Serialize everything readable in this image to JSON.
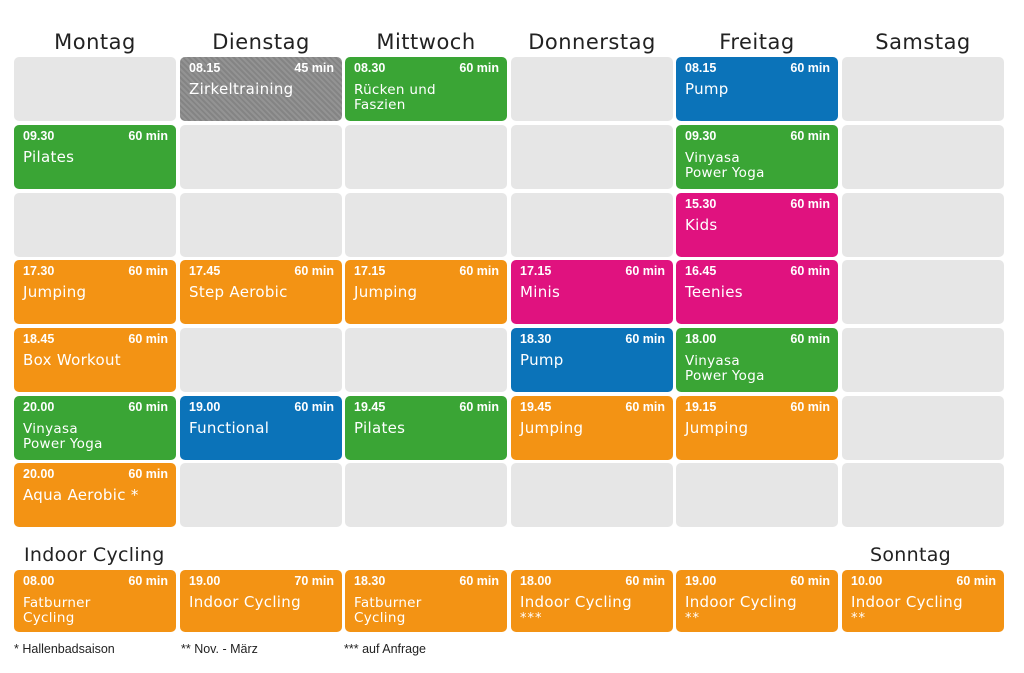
{
  "days": [
    "Montag",
    "Dienstag",
    "Mittwoch",
    "Donnerstag",
    "Freitag",
    "Samstag"
  ],
  "rows": [
    [
      null,
      {
        "time": "08.15",
        "dur": "45 min",
        "title": "Zirkeltraining",
        "color": "gray"
      },
      {
        "time": "08.30",
        "dur": "60 min",
        "title": "Rücken und",
        "title2": "Faszien",
        "color": "green"
      },
      null,
      {
        "time": "08.15",
        "dur": "60 min",
        "title": "Pump",
        "color": "blue"
      },
      null
    ],
    [
      {
        "time": "09.30",
        "dur": "60 min",
        "title": "Pilates",
        "color": "green"
      },
      null,
      null,
      null,
      {
        "time": "09.30",
        "dur": "60 min",
        "title": "Vinyasa",
        "title2": "Power Yoga",
        "color": "green"
      },
      null
    ],
    [
      null,
      null,
      null,
      null,
      {
        "time": "15.30",
        "dur": "60 min",
        "title": "Kids",
        "color": "magenta"
      },
      null
    ],
    [
      {
        "time": "17.30",
        "dur": "60 min",
        "title": "Jumping",
        "color": "orange"
      },
      {
        "time": "17.45",
        "dur": "60 min",
        "title": "Step Aerobic",
        "color": "orange"
      },
      {
        "time": "17.15",
        "dur": "60 min",
        "title": "Jumping",
        "color": "orange"
      },
      {
        "time": "17.15",
        "dur": "60 min",
        "title": "Minis",
        "color": "magenta"
      },
      {
        "time": "16.45",
        "dur": "60 min",
        "title": "Teenies",
        "color": "magenta"
      },
      null
    ],
    [
      {
        "time": "18.45",
        "dur": "60 min",
        "title": "Box Workout",
        "color": "orange"
      },
      null,
      null,
      {
        "time": "18.30",
        "dur": "60 min",
        "title": "Pump",
        "color": "blue"
      },
      {
        "time": "18.00",
        "dur": "60 min",
        "title": "Vinyasa",
        "title2": "Power Yoga",
        "color": "green"
      },
      null
    ],
    [
      {
        "time": "20.00",
        "dur": "60 min",
        "title": "Vinyasa",
        "title2": "Power Yoga",
        "color": "green"
      },
      {
        "time": "19.00",
        "dur": "60 min",
        "title": "Functional",
        "color": "blue"
      },
      {
        "time": "19.45",
        "dur": "60 min",
        "title": "Pilates",
        "color": "green"
      },
      {
        "time": "19.45",
        "dur": "60 min",
        "title": "Jumping",
        "color": "orange"
      },
      {
        "time": "19.15",
        "dur": "60 min",
        "title": "Jumping",
        "color": "orange"
      },
      null
    ],
    [
      {
        "time": "20.00",
        "dur": "60 min",
        "title": "Aqua Aerobic *",
        "color": "orange"
      },
      null,
      null,
      null,
      null,
      null
    ]
  ],
  "cycling": {
    "label": "Indoor Cycling",
    "sunday_label": "Sonntag",
    "cells": [
      {
        "time": "08.00",
        "dur": "60 min",
        "title": "Fatburner",
        "title2": "Cycling",
        "color": "orange"
      },
      {
        "time": "19.00",
        "dur": "70 min",
        "title": "Indoor Cycling",
        "color": "orange"
      },
      {
        "time": "18.30",
        "dur": "60 min",
        "title": "Fatburner",
        "title2": "Cycling",
        "color": "orange"
      },
      {
        "time": "18.00",
        "dur": "60 min",
        "title": "Indoor Cycling",
        "marks": "***",
        "color": "orange"
      },
      {
        "time": "19.00",
        "dur": "60 min",
        "title": "Indoor Cycling",
        "marks": "**",
        "color": "orange"
      },
      {
        "time": "10.00",
        "dur": "60 min",
        "title": "Indoor Cycling",
        "marks": "**",
        "color": "orange"
      }
    ]
  },
  "footnotes": [
    "* Hallenbadsaison",
    "** Nov. - März",
    "*** auf Anfrage"
  ],
  "colors": {
    "green": "#3aa535",
    "orange": "#f39314",
    "blue": "#0b73b9",
    "magenta": "#e0127f",
    "gray": "#8c8c8c",
    "empty": "#e6e6e6"
  }
}
